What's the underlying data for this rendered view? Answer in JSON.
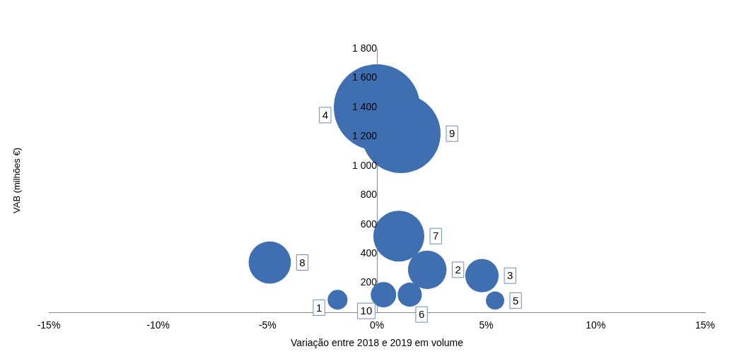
{
  "chart_data": {
    "type": "bubble",
    "xlabel": "Variação entre 2018 e 2019 em volume",
    "ylabel": "VAB (milhões €)",
    "x": [
      -1.8,
      2.3,
      4.8,
      0.0,
      5.4,
      1.5,
      1.0,
      -4.9,
      1.1,
      0.3
    ],
    "series": [
      {
        "color": "#3f6fb0",
        "values": [
          85,
          290,
          250,
          1400,
          80,
          120,
          520,
          340,
          1220,
          120
        ],
        "sizes": [
          0.053,
          0.2,
          0.15,
          1,
          0.045,
          0.078,
          0.35,
          0.24,
          0.84,
          0.087
        ]
      }
    ],
    "xlim": [
      -15,
      15
    ],
    "xticks": [
      {
        "value": -15,
        "label": "-15%"
      },
      {
        "value": -10,
        "label": "-10%"
      },
      {
        "value": -5,
        "label": "-5%"
      },
      {
        "value": 0,
        "label": "0%"
      },
      {
        "value": 5,
        "label": "5%"
      },
      {
        "value": 10,
        "label": "10%"
      },
      {
        "value": 15,
        "label": "15%"
      }
    ],
    "ylim": [
      0,
      1800
    ],
    "yticks": [
      {
        "value": 200,
        "label": "200"
      },
      {
        "value": 400,
        "label": "400"
      },
      {
        "value": 600,
        "label": "600"
      },
      {
        "value": 800,
        "label": "800"
      },
      {
        "value": 1000,
        "label": "1 000"
      },
      {
        "value": 1200,
        "label": "1 200"
      },
      {
        "value": 1400,
        "label": "1 400"
      },
      {
        "value": 1600,
        "label": "1 600"
      },
      {
        "value": 1800,
        "label": "1 800"
      }
    ],
    "grid": false,
    "legend": false,
    "annotations": [
      "1",
      "2",
      "3",
      "4",
      "5",
      "6",
      "7",
      "8",
      "9",
      "10"
    ]
  }
}
